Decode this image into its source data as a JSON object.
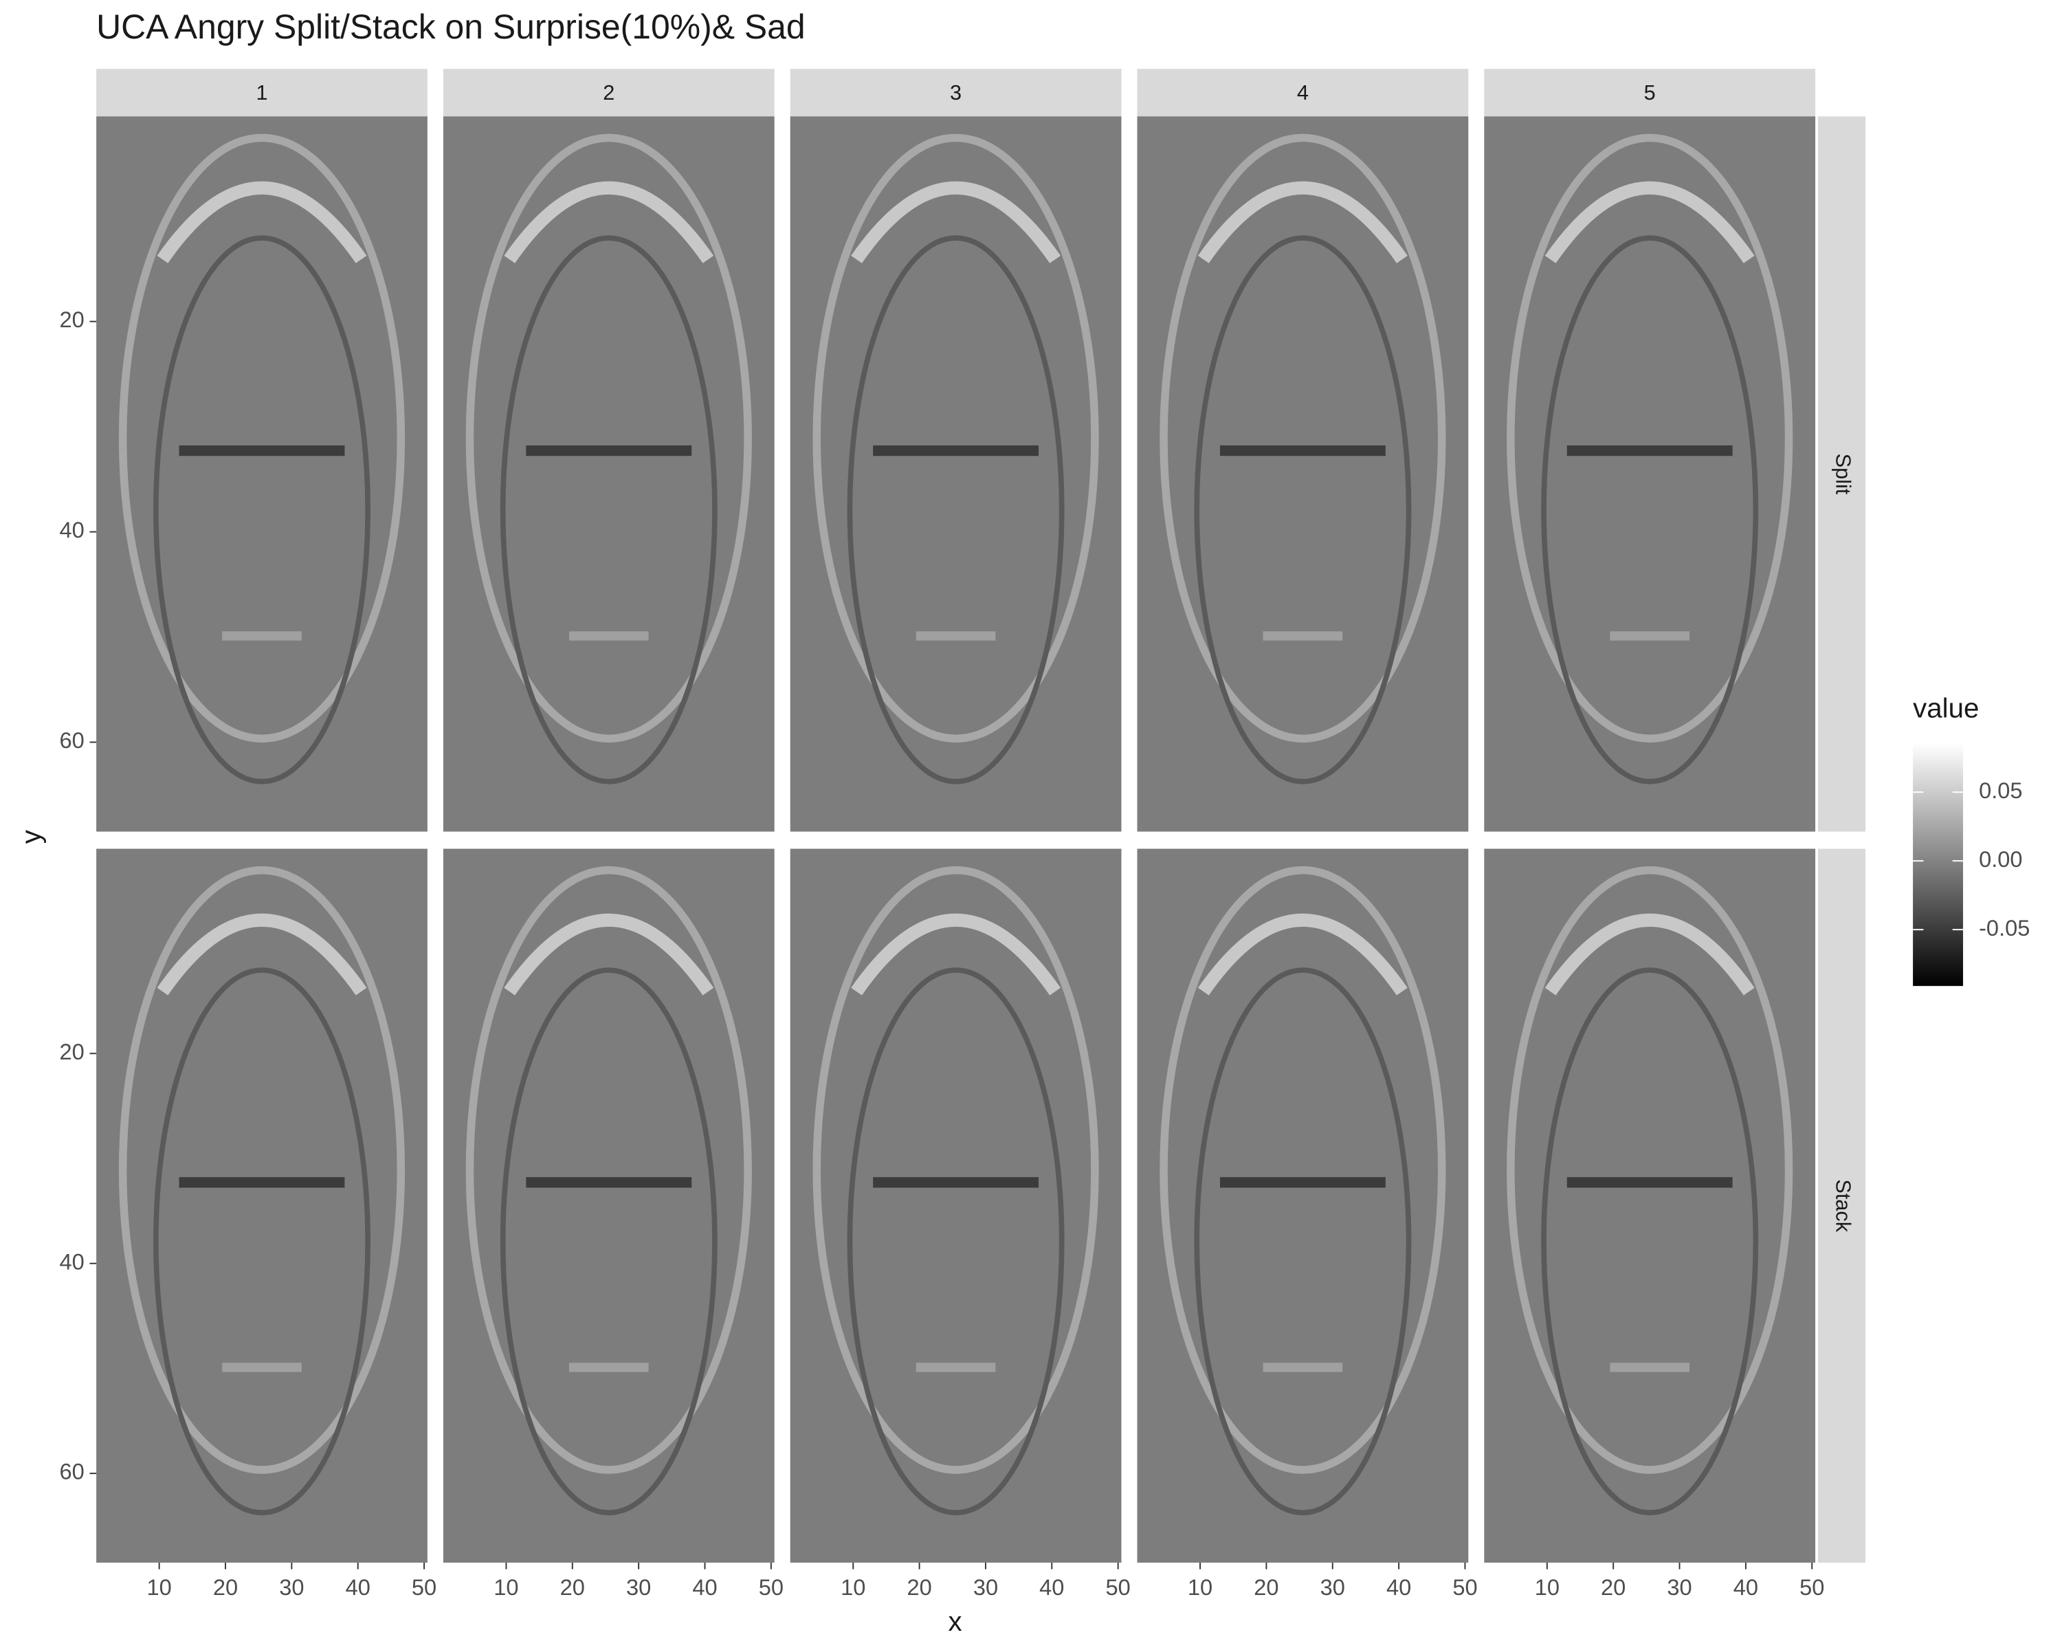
{
  "chart_data": {
    "type": "raster",
    "title": "UCA Angry Split/Stack on Surprise(10%)& Sad",
    "x_label": "x",
    "y_label": "y",
    "facet_columns": [
      "1",
      "2",
      "3",
      "4",
      "5"
    ],
    "facet_rows": [
      "Split",
      "Stack"
    ],
    "xlim": [
      0.5,
      50.5
    ],
    "xticks": [
      10,
      20,
      30,
      40,
      50
    ],
    "ylim": [
      0.5,
      68.5
    ],
    "yticks": [
      20,
      40,
      60
    ],
    "y_reversed": true,
    "legend": {
      "title": "value",
      "limits": [
        -0.091,
        0.0856
      ],
      "ticks": [
        0.05,
        {
          "value": 0,
          "label": "0.00"
        },
        -0.05
      ],
      "colors": [
        "#000000",
        "#ffffff"
      ]
    }
  }
}
